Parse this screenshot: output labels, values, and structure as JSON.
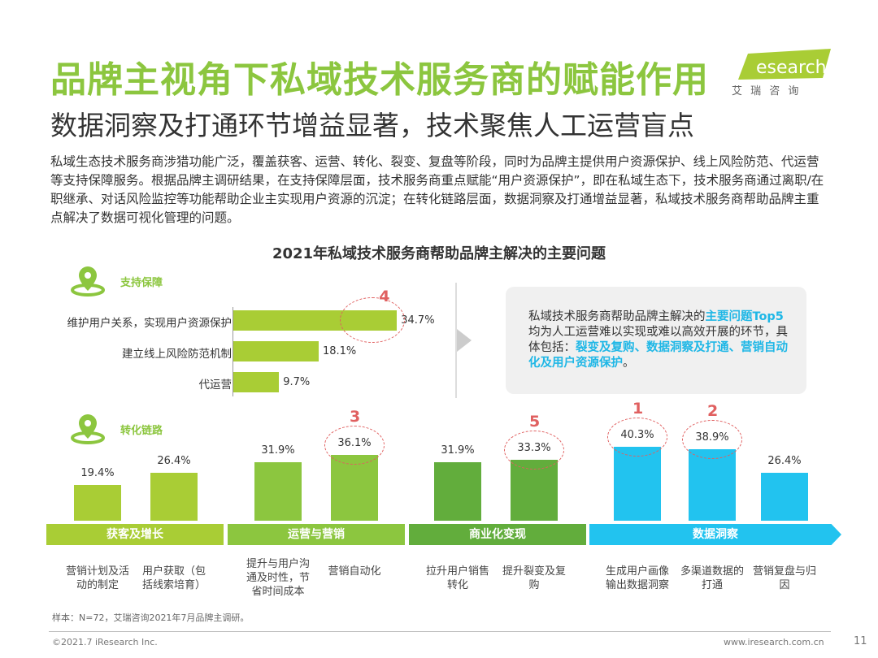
{
  "header": {
    "title": "品牌主视角下私域技术服务商的赋能作用",
    "subtitle": "数据洞察及打通环节增益显著，技术聚焦人工运营盲点",
    "logo_text": "iresearch",
    "logo_cn": "艾 瑞 咨 询"
  },
  "intro": "私域生态技术服务商涉猎功能广泛，覆盖获客、运营、转化、裂变、复盘等阶段，同时为品牌主提供用户资源保护、线上风险防范、代运营等支持保障服务。根据品牌主调研结果，在支持保障层面，技术服务商重点赋能“用户资源保护”，即在私域生态下，技术服务商通过离职/在职继承、对话风险监控等功能帮助企业主实现用户资源的沉淀；在转化链路层面，数据洞察及打通增益显著，私域技术服务商帮助品牌主重点解决了数据可视化管理的问题。",
  "callout": {
    "p1": "私域技术服务商帮助品牌主解决的",
    "h1": "主要问题Top5",
    "p2": "均为人工运营难以实现或难以高效开展的环节，具体包括：",
    "h2": "裂变及复购、数据洞察及打通、营销自动化及用户资源保护",
    "p3": "。"
  },
  "chart_data": [
    {
      "type": "bar",
      "orientation": "horizontal",
      "title": "2021年私域技术服务商帮助品牌主解决的主要问题",
      "section": "支持保障",
      "categories": [
        "维护用户关系，实现用户资源保护",
        "建立线上风险防范机制",
        "代运营"
      ],
      "values": [
        34.7,
        18.1,
        9.7
      ],
      "labels": [
        "34.7%",
        "18.1%",
        "9.7%"
      ],
      "color": "#a9cd35",
      "annotations": [
        {
          "category": "维护用户关系，实现用户资源保护",
          "rank": "4"
        }
      ]
    },
    {
      "type": "bar",
      "section": "转化链路",
      "groups": [
        {
          "name": "获客及增长",
          "color": "#a9cd35",
          "categories": [
            "营销计划及活动的制定",
            "用户获取（包括线索培育）"
          ],
          "values": [
            19.4,
            26.4
          ]
        },
        {
          "name": "运营与营销",
          "color": "#8cc63f",
          "categories": [
            "提升与用户沟通及时性，节省时间成本",
            "营销自动化"
          ],
          "values": [
            31.9,
            36.1
          ]
        },
        {
          "name": "商业化变现",
          "color": "#62ad3c",
          "categories": [
            "拉升用户销售转化",
            "提升裂变及复购"
          ],
          "values": [
            31.9,
            33.3
          ]
        },
        {
          "name": "数据洞察",
          "color": "#22c3ef",
          "categories": [
            "生成用户画像输出数据洞察",
            "多渠道数据的打通",
            "营销复盘与归因"
          ],
          "values": [
            40.3,
            38.9,
            26.4
          ]
        }
      ],
      "annotations": [
        {
          "category": "营销自动化",
          "rank": "3"
        },
        {
          "category": "提升裂变及复购",
          "rank": "5"
        },
        {
          "category": "生成用户画像输出数据洞察",
          "rank": "1"
        },
        {
          "category": "多渠道数据的打通",
          "rank": "2"
        }
      ]
    }
  ],
  "footer": {
    "note": "样本：N=72，艾瑞咨询2021年7月品牌主调研。",
    "copyright": "©2021.7 iResearch Inc.",
    "url": "www.iresearch.com.cn",
    "page": "11"
  }
}
